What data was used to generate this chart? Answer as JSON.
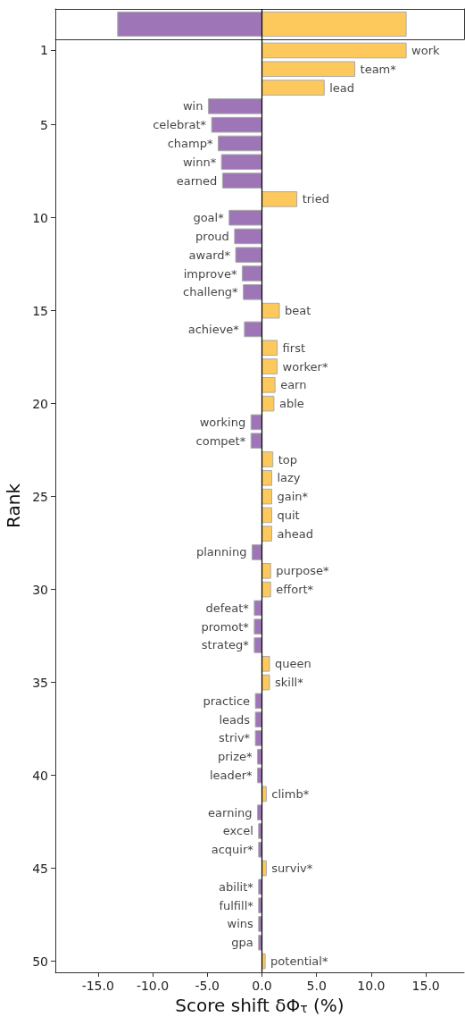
{
  "chart_data": [
    {
      "type": "bar",
      "orientation": "horizontal",
      "stacked": true,
      "categories": [
        null
      ],
      "series": [
        {
          "color": "#9e75b6",
          "values": [
            -13.2
          ]
        },
        {
          "color": "#fec95c",
          "values": [
            13.2
          ]
        }
      ],
      "xlim": [
        -18.9,
        18.5
      ],
      "tick_labels": false,
      "ref_lines": [
        {
          "axis": "x",
          "value": 0,
          "color": "#000000"
        }
      ]
    },
    {
      "type": "bar",
      "orientation": "horizontal",
      "x": [
        1,
        2,
        3,
        4,
        5,
        6,
        7,
        8,
        9,
        10,
        11,
        12,
        13,
        14,
        15,
        16,
        17,
        18,
        19,
        20,
        21,
        22,
        23,
        24,
        25,
        26,
        27,
        28,
        29,
        30,
        31,
        32,
        33,
        34,
        35,
        36,
        37,
        38,
        39,
        40,
        41,
        42,
        43,
        44,
        45,
        46,
        47,
        48,
        49,
        50
      ],
      "values": [
        13.2,
        8.5,
        5.7,
        -4.9,
        -4.6,
        -4.0,
        -3.7,
        -3.6,
        3.2,
        -3.0,
        -2.5,
        -2.4,
        -1.8,
        -1.7,
        1.6,
        -1.6,
        1.4,
        1.4,
        1.2,
        1.1,
        -1.0,
        -1.0,
        1.0,
        0.9,
        0.9,
        0.9,
        0.9,
        -0.9,
        0.8,
        0.8,
        -0.7,
        -0.7,
        -0.7,
        0.7,
        0.7,
        -0.6,
        -0.6,
        -0.6,
        -0.4,
        -0.4,
        0.4,
        -0.4,
        -0.3,
        -0.3,
        0.4,
        -0.3,
        -0.3,
        -0.3,
        -0.3,
        0.3
      ],
      "colors": [
        "#fec95c",
        "#fec95c",
        "#fec95c",
        "#9e75b6",
        "#9e75b6",
        "#9e75b6",
        "#9e75b6",
        "#9e75b6",
        "#fec95c",
        "#9e75b6",
        "#9e75b6",
        "#9e75b6",
        "#9e75b6",
        "#9e75b6",
        "#fec95c",
        "#9e75b6",
        "#fec95c",
        "#fec95c",
        "#fec95c",
        "#fec95c",
        "#9e75b6",
        "#9e75b6",
        "#fec95c",
        "#fec95c",
        "#fec95c",
        "#fec95c",
        "#fec95c",
        "#9e75b6",
        "#fec95c",
        "#fec95c",
        "#9e75b6",
        "#9e75b6",
        "#9e75b6",
        "#fec95c",
        "#fec95c",
        "#9e75b6",
        "#9e75b6",
        "#9e75b6",
        "#9e75b6",
        "#9e75b6",
        "#fec95c",
        "#9e75b6",
        "#9e75b6",
        "#9e75b6",
        "#fec95c",
        "#9e75b6",
        "#9e75b6",
        "#9e75b6",
        "#9e75b6",
        "#fec95c"
      ],
      "xlabel": "Score shift δΦ$_{τ}$ (%)",
      "ylabel": "Rank",
      "xlim": [
        -18.9,
        18.5
      ],
      "xticks": [
        {
          "value": -15,
          "label": "-15.0"
        },
        {
          "value": -10,
          "label": "-10.0"
        },
        {
          "value": -5,
          "label": "-5.0"
        },
        {
          "value": 0,
          "label": "0.0"
        },
        {
          "value": 5,
          "label": "5.0"
        },
        {
          "value": 10,
          "label": "10.0"
        },
        {
          "value": 15,
          "label": "15.0"
        }
      ],
      "ylim": [
        50.6,
        0.4
      ],
      "yticks": [
        1,
        5,
        10,
        15,
        20,
        25,
        30,
        35,
        40,
        45,
        50
      ],
      "ref_lines": [
        {
          "axis": "x",
          "value": 0,
          "color": "#000000"
        }
      ],
      "annotations": [
        {
          "text": "work",
          "x": 13.2,
          "y": 1
        },
        {
          "text": "team*",
          "x": 8.5,
          "y": 2
        },
        {
          "text": "lead",
          "x": 5.7,
          "y": 3
        },
        {
          "text": "win",
          "x": -4.9,
          "y": 4
        },
        {
          "text": "celebrat*",
          "x": -4.6,
          "y": 5
        },
        {
          "text": "champ*",
          "x": -4.0,
          "y": 6
        },
        {
          "text": "winn*",
          "x": -3.7,
          "y": 7
        },
        {
          "text": "earned",
          "x": -3.6,
          "y": 8
        },
        {
          "text": "tried",
          "x": 3.2,
          "y": 9
        },
        {
          "text": "goal*",
          "x": -3.0,
          "y": 10
        },
        {
          "text": "proud",
          "x": -2.5,
          "y": 11
        },
        {
          "text": "award*",
          "x": -2.4,
          "y": 12
        },
        {
          "text": "improve*",
          "x": -1.8,
          "y": 13
        },
        {
          "text": "challeng*",
          "x": -1.7,
          "y": 14
        },
        {
          "text": "beat",
          "x": 1.6,
          "y": 15
        },
        {
          "text": "achieve*",
          "x": -1.6,
          "y": 16
        },
        {
          "text": "first",
          "x": 1.4,
          "y": 17
        },
        {
          "text": "worker*",
          "x": 1.4,
          "y": 18
        },
        {
          "text": "earn",
          "x": 1.2,
          "y": 19
        },
        {
          "text": "able",
          "x": 1.1,
          "y": 20
        },
        {
          "text": "working",
          "x": -1.0,
          "y": 21
        },
        {
          "text": "compet*",
          "x": -1.0,
          "y": 22
        },
        {
          "text": "top",
          "x": 1.0,
          "y": 23
        },
        {
          "text": "lazy",
          "x": 0.9,
          "y": 24
        },
        {
          "text": "gain*",
          "x": 0.9,
          "y": 25
        },
        {
          "text": "quit",
          "x": 0.9,
          "y": 26
        },
        {
          "text": "ahead",
          "x": 0.9,
          "y": 27
        },
        {
          "text": "planning",
          "x": -0.9,
          "y": 28
        },
        {
          "text": "purpose*",
          "x": 0.8,
          "y": 29
        },
        {
          "text": "effort*",
          "x": 0.8,
          "y": 30
        },
        {
          "text": "defeat*",
          "x": -0.7,
          "y": 31
        },
        {
          "text": "promot*",
          "x": -0.7,
          "y": 32
        },
        {
          "text": "strateg*",
          "x": -0.7,
          "y": 33
        },
        {
          "text": "queen",
          "x": 0.7,
          "y": 34
        },
        {
          "text": "skill*",
          "x": 0.7,
          "y": 35
        },
        {
          "text": "practice",
          "x": -0.6,
          "y": 36
        },
        {
          "text": "leads",
          "x": -0.6,
          "y": 37
        },
        {
          "text": "striv*",
          "x": -0.6,
          "y": 38
        },
        {
          "text": "prize*",
          "x": -0.4,
          "y": 39
        },
        {
          "text": "leader*",
          "x": -0.4,
          "y": 40
        },
        {
          "text": "climb*",
          "x": 0.4,
          "y": 41
        },
        {
          "text": "earning",
          "x": -0.4,
          "y": 42
        },
        {
          "text": "excel",
          "x": -0.3,
          "y": 43
        },
        {
          "text": "acquir*",
          "x": -0.3,
          "y": 44
        },
        {
          "text": "surviv*",
          "x": 0.4,
          "y": 45
        },
        {
          "text": "abilit*",
          "x": -0.3,
          "y": 46
        },
        {
          "text": "fulfill*",
          "x": -0.3,
          "y": 47
        },
        {
          "text": "wins",
          "x": -0.3,
          "y": 48
        },
        {
          "text": "gpa",
          "x": -0.3,
          "y": 49
        },
        {
          "text": "potential*",
          "x": 0.3,
          "y": 50
        }
      ]
    }
  ]
}
